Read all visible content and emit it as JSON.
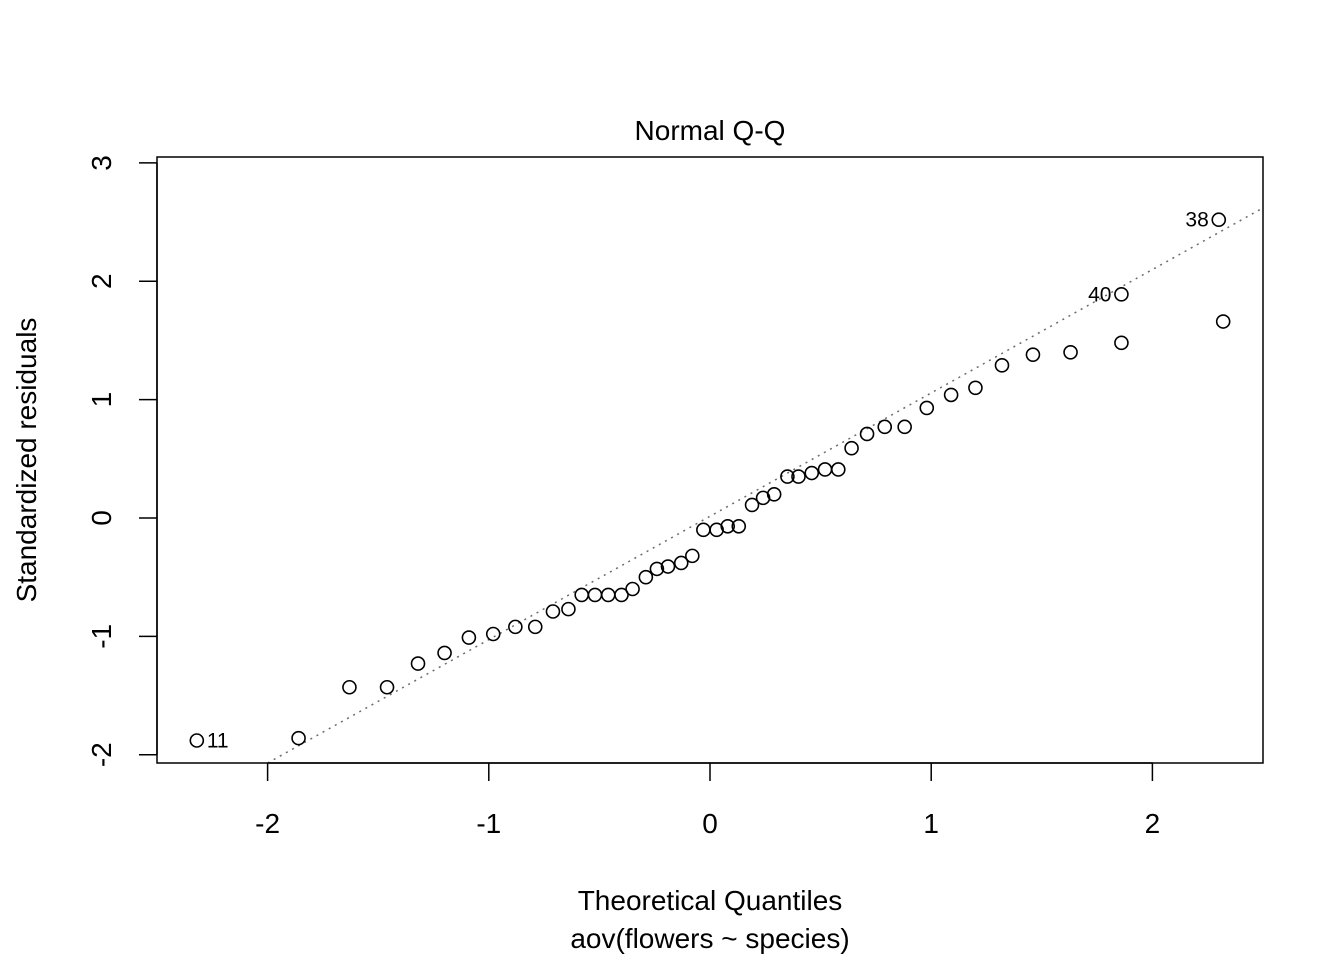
{
  "chart_data": {
    "type": "scatter",
    "title": "Normal Q-Q",
    "xlabel": "Theoretical Quantiles",
    "subtitle": "aov(flowers ~ species)",
    "ylabel": "Standardized residuals",
    "xlim": [
      -2.5,
      2.5
    ],
    "ylim": [
      -2.07,
      3.05
    ],
    "x_ticks": [
      "-2",
      "-1",
      "0",
      "1",
      "2"
    ],
    "y_ticks": [
      "-2",
      "-1",
      "0",
      "1",
      "2",
      "3"
    ],
    "grid": false,
    "reference_line": {
      "style": "dotted",
      "color": "#6b6b6b",
      "from": [
        -2.0,
        -2.07
      ],
      "to": [
        2.5,
        2.62
      ]
    },
    "points": [
      {
        "x": -2.32,
        "y": -1.88,
        "label": "11"
      },
      {
        "x": -1.86,
        "y": -1.86
      },
      {
        "x": -1.63,
        "y": -1.43
      },
      {
        "x": -1.46,
        "y": -1.43
      },
      {
        "x": -1.32,
        "y": -1.23
      },
      {
        "x": -1.2,
        "y": -1.14
      },
      {
        "x": -1.09,
        "y": -1.01
      },
      {
        "x": -0.98,
        "y": -0.98
      },
      {
        "x": -0.88,
        "y": -0.92
      },
      {
        "x": -0.79,
        "y": -0.92
      },
      {
        "x": -0.71,
        "y": -0.79
      },
      {
        "x": -0.64,
        "y": -0.77
      },
      {
        "x": -0.58,
        "y": -0.65
      },
      {
        "x": -0.52,
        "y": -0.65
      },
      {
        "x": -0.46,
        "y": -0.65
      },
      {
        "x": -0.4,
        "y": -0.65
      },
      {
        "x": -0.35,
        "y": -0.6
      },
      {
        "x": -0.29,
        "y": -0.5
      },
      {
        "x": -0.24,
        "y": -0.43
      },
      {
        "x": -0.19,
        "y": -0.41
      },
      {
        "x": -0.13,
        "y": -0.38
      },
      {
        "x": -0.08,
        "y": -0.32
      },
      {
        "x": -0.03,
        "y": -0.1
      },
      {
        "x": 0.03,
        "y": -0.1
      },
      {
        "x": 0.08,
        "y": -0.07
      },
      {
        "x": 0.13,
        "y": -0.07
      },
      {
        "x": 0.19,
        "y": 0.11
      },
      {
        "x": 0.24,
        "y": 0.17
      },
      {
        "x": 0.29,
        "y": 0.2
      },
      {
        "x": 0.35,
        "y": 0.35
      },
      {
        "x": 0.4,
        "y": 0.35
      },
      {
        "x": 0.46,
        "y": 0.38
      },
      {
        "x": 0.52,
        "y": 0.41
      },
      {
        "x": 0.58,
        "y": 0.41
      },
      {
        "x": 0.64,
        "y": 0.59
      },
      {
        "x": 0.71,
        "y": 0.71
      },
      {
        "x": 0.79,
        "y": 0.77
      },
      {
        "x": 0.88,
        "y": 0.77
      },
      {
        "x": 0.98,
        "y": 0.93
      },
      {
        "x": 1.09,
        "y": 1.04
      },
      {
        "x": 1.2,
        "y": 1.1
      },
      {
        "x": 1.32,
        "y": 1.29
      },
      {
        "x": 1.46,
        "y": 1.38
      },
      {
        "x": 1.63,
        "y": 1.4
      },
      {
        "x": 1.86,
        "y": 1.48
      },
      {
        "x": 2.32,
        "y": 1.66
      }
    ],
    "labeled_points": [
      {
        "x": 1.86,
        "y": 1.89,
        "label": "40"
      },
      {
        "x": 2.3,
        "y": 2.52,
        "label": "38"
      }
    ]
  }
}
